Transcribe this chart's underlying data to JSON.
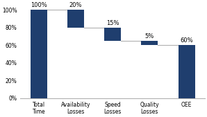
{
  "categories": [
    "Total\nTime",
    "Availability\nLosses",
    "Speed\nLosses",
    "Quality\nLosses",
    "OEE"
  ],
  "bar_bottoms": [
    0,
    80,
    65,
    60,
    0
  ],
  "bar_heights": [
    100,
    20,
    15,
    5,
    60
  ],
  "labels": [
    "100%",
    "20%",
    "15%",
    "5%",
    "60%"
  ],
  "bar_color": "#1F3E6E",
  "connector_color": "#b0b0b0",
  "background_color": "#ffffff",
  "yticks": [
    0,
    20,
    40,
    60,
    80,
    100
  ],
  "ytick_labels": [
    "0%",
    "20%",
    "40%",
    "60%",
    "80%",
    "100%"
  ],
  "ylim": [
    0,
    108
  ],
  "label_fontsize": 6.0,
  "tick_fontsize": 5.5,
  "cat_fontsize": 5.5,
  "bar_width": 0.45
}
